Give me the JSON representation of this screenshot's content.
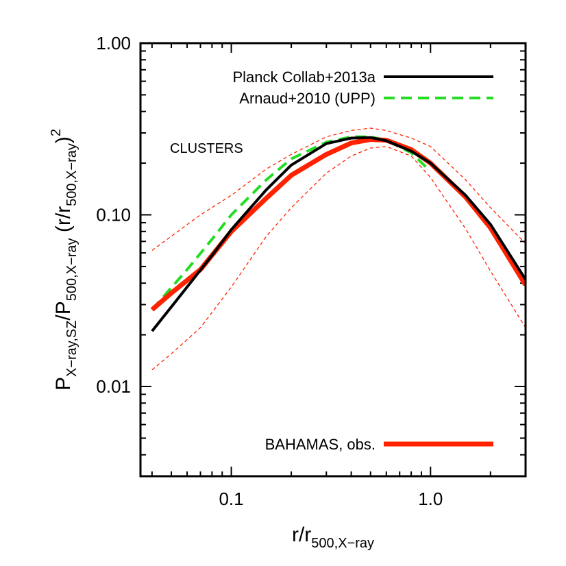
{
  "chart_data": {
    "type": "line",
    "title": "",
    "annotation": "CLUSTERS",
    "xlabel": {
      "base": "r/r",
      "sub": "500,X−ray"
    },
    "ylabel": {
      "p1": "P",
      "s1": "X−ray,SZ",
      "p2": "/P",
      "s2": "500,X−ray",
      "p3": "  (r/r",
      "s3": "500,X−ray",
      "p4": ")",
      "sup": "2"
    },
    "x_scale": "log",
    "y_scale": "log",
    "xlim": [
      0.035,
      3.0
    ],
    "ylim": [
      0.003,
      1.0
    ],
    "x_ticks": [
      {
        "value": 0.1,
        "label": "0.1"
      },
      {
        "value": 1.0,
        "label": "1.0"
      }
    ],
    "y_ticks": [
      {
        "value": 0.01,
        "label": "0.01"
      },
      {
        "value": 0.1,
        "label": "0.10"
      },
      {
        "value": 1.0,
        "label": "1.00"
      }
    ],
    "series": [
      {
        "name": "Planck Collab+2013a",
        "color": "#000000",
        "style": "solid",
        "x": [
          0.04,
          0.06,
          0.08,
          0.1,
          0.15,
          0.2,
          0.3,
          0.4,
          0.5,
          0.6,
          0.8,
          1.0,
          1.5,
          2.0,
          3.0
        ],
        "y": [
          0.021,
          0.038,
          0.058,
          0.082,
          0.14,
          0.195,
          0.26,
          0.28,
          0.282,
          0.27,
          0.235,
          0.2,
          0.13,
          0.088,
          0.042
        ]
      },
      {
        "name": "Arnaud+2010 (UPP)",
        "color": "#22dd22",
        "style": "dashed",
        "x": [
          0.04,
          0.06,
          0.08,
          0.1,
          0.15,
          0.2,
          0.3,
          0.4,
          0.5,
          0.6,
          0.8,
          0.95
        ],
        "y": [
          0.028,
          0.048,
          0.072,
          0.1,
          0.16,
          0.212,
          0.265,
          0.285,
          0.285,
          0.272,
          0.23,
          0.19
        ]
      },
      {
        "name": "BAHAMAS, obs.",
        "color": "#ff2200",
        "style": "thick",
        "x": [
          0.04,
          0.05,
          0.07,
          0.1,
          0.15,
          0.2,
          0.3,
          0.4,
          0.5,
          0.6,
          0.8,
          1.0,
          1.5,
          2.0,
          3.0
        ],
        "y": [
          0.028,
          0.035,
          0.048,
          0.08,
          0.125,
          0.17,
          0.225,
          0.262,
          0.275,
          0.272,
          0.24,
          0.2,
          0.127,
          0.084,
          0.039
        ]
      },
      {
        "name": "",
        "color": "#ff2200",
        "style": "thin-dashed",
        "x": [
          0.04,
          0.05,
          0.07,
          0.1,
          0.15,
          0.2,
          0.3,
          0.4,
          0.5,
          0.6,
          0.8,
          1.0,
          1.5,
          2.0,
          3.0
        ],
        "y": [
          0.062,
          0.075,
          0.1,
          0.13,
          0.185,
          0.225,
          0.285,
          0.31,
          0.32,
          0.31,
          0.28,
          0.25,
          0.16,
          0.11,
          0.068
        ]
      },
      {
        "name": "",
        "color": "#ff2200",
        "style": "thin-dashed",
        "x": [
          0.04,
          0.05,
          0.07,
          0.1,
          0.15,
          0.2,
          0.3,
          0.4,
          0.5,
          0.6,
          0.8,
          1.0,
          1.5,
          2.0,
          3.0
        ],
        "y": [
          0.0125,
          0.0155,
          0.022,
          0.038,
          0.075,
          0.11,
          0.175,
          0.22,
          0.245,
          0.25,
          0.22,
          0.165,
          0.083,
          0.047,
          0.022
        ]
      }
    ],
    "legend": [
      {
        "label": "Planck Collab+2013a",
        "color": "#000000",
        "style": "solid"
      },
      {
        "label": "Arnaud+2010 (UPP)",
        "color": "#22dd22",
        "style": "dashed"
      }
    ],
    "legend_bottom": {
      "label": "BAHAMAS, obs.",
      "color": "#ff2200",
      "style": "thick"
    }
  }
}
